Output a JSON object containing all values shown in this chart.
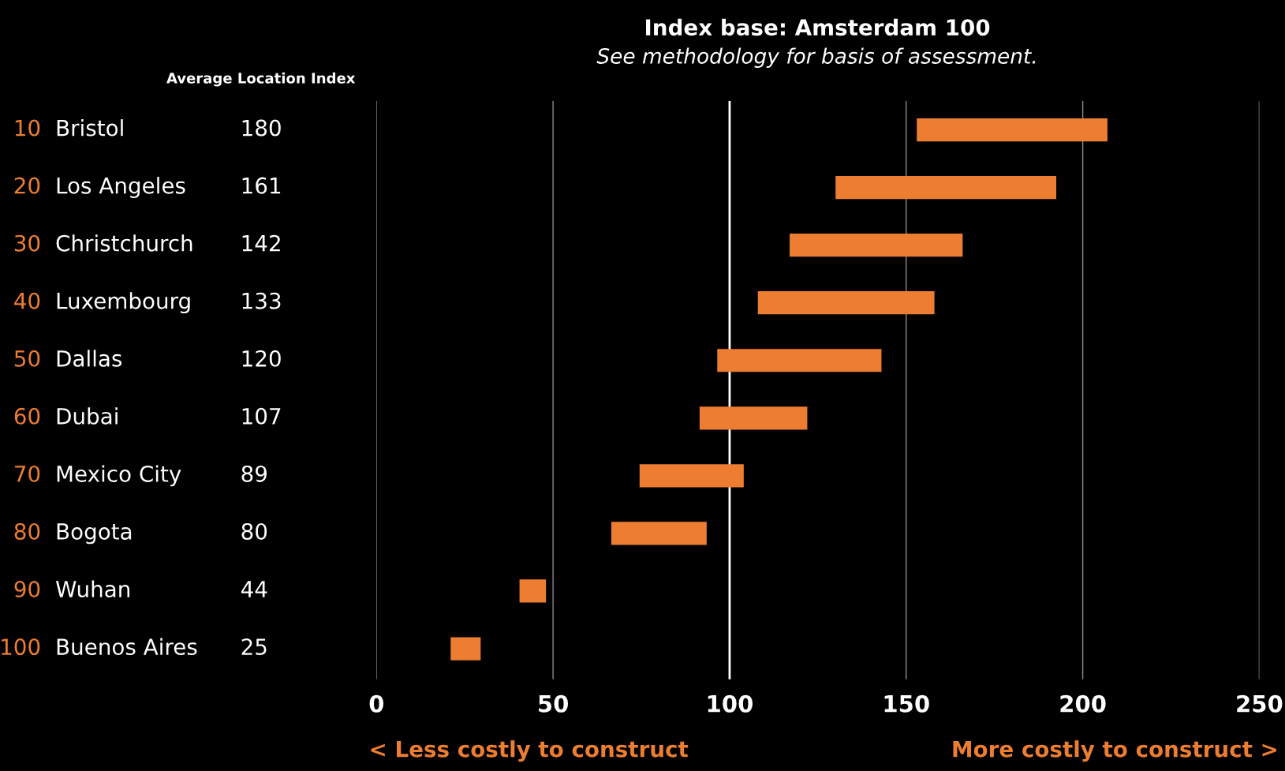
{
  "chart_data": {
    "type": "bar",
    "orientation": "horizontal",
    "title": "Index base: Amsterdam 100",
    "subtitle": "See methodology for basis of assessment.",
    "categories": [
      "Bristol",
      "Los Angeles",
      "Christchurch",
      "Luxembourg",
      "Dallas",
      "Dubai",
      "Mexico City",
      "Bogota",
      "Wuhan",
      "Buenos Aires"
    ],
    "base": [
      153,
      130,
      117,
      108,
      96.5,
      91.5,
      74.5,
      66.5,
      40.5,
      21
    ],
    "values": [
      54,
      62.5,
      49,
      50,
      46.5,
      30.5,
      29.5,
      27,
      7.5,
      8.5
    ],
    "color": "#ed7d31",
    "xlim": [
      0,
      250
    ],
    "xticks": [
      0,
      50,
      100,
      150,
      200,
      250
    ],
    "grid": "x",
    "ref_lines": [
      {
        "axis": "x",
        "value": 100,
        "color": "#ffffff"
      }
    ],
    "annotations": [
      "Average Location Index",
      "< Less costly to construct",
      "More costly to construct >",
      "10",
      "20",
      "30",
      "40",
      "50",
      "60",
      "70",
      "80",
      "90",
      "100",
      "180",
      "161",
      "142",
      "133",
      "120",
      "107",
      "89",
      "80",
      "44",
      "25"
    ]
  }
}
